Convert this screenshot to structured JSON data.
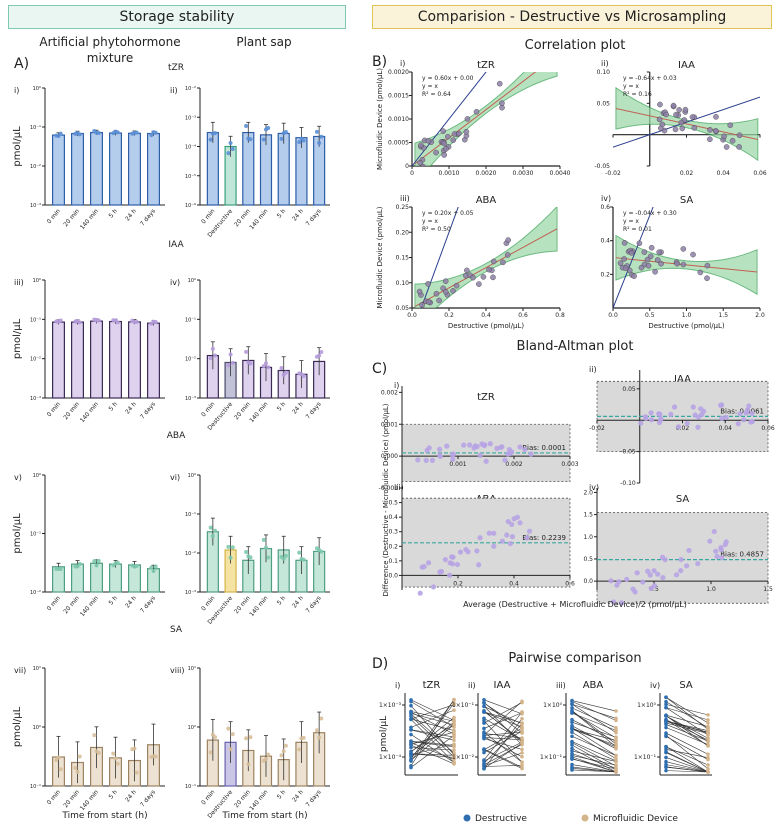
{
  "headers": {
    "left": "Storage stability",
    "right": "Comparision - Destructive vs Microsampling"
  },
  "panel_letters": [
    "A)",
    "B)",
    "C)",
    "D)"
  ],
  "column_titles": {
    "left": "Artificial phytohormone mixture",
    "right": "Plant sap"
  },
  "section_titles": {
    "correlation": "Correlation plot",
    "bland_altman": "Bland-Altman plot",
    "pairwise": "Pairwise comparison"
  },
  "colors": {
    "tZR": "#5b8fd6",
    "IAA": "#b59bdc",
    "ABA": "#7cc9ad",
    "SA": "#d7bf9a",
    "SA_stroke": "#9c8260",
    "destructive": "#2f6fb0",
    "microfluidic": "#d4b48a",
    "reg_line": "#2e9e4b",
    "reg_band": "#9ad6a6",
    "identity_line": "#2b3f8f",
    "ba_band": "#d9d9d9",
    "ba_bias": "#3aa6a0",
    "scatter_point": "#8e7fa8",
    "ba_point": "#b7a3e4",
    "eq_text": "#c94a3d"
  },
  "chart_data": [
    {
      "id": "A",
      "type": "bar",
      "title": "",
      "xlabel": "Time from start (h)",
      "ylabel": "pmol/µL",
      "subpanels": [
        {
          "roman": "i)",
          "hormone": "tZR",
          "column": "left",
          "categories": [
            "0 min",
            "20 min",
            "140 min",
            "5 h",
            "24 h",
            "7 days"
          ],
          "values": [
            0.062,
            0.068,
            0.072,
            0.07,
            0.069,
            0.068
          ],
          "ylim_exp": [
            -3,
            0
          ],
          "yscale": "log",
          "tick_labels": [
            "10⁻³",
            "10⁻²",
            "10⁻¹",
            "10⁰"
          ]
        },
        {
          "roman": "ii)",
          "hormone": "tZR",
          "column": "right",
          "categories": [
            "0 min",
            "Destructive",
            "20 min",
            "140 min",
            "5 h",
            "24 h",
            "7 days"
          ],
          "values": [
            0.0003,
            0.0001,
            0.0003,
            0.00025,
            0.00028,
            0.0002,
            0.00022
          ],
          "ylim_exp": [
            -6,
            -2
          ],
          "yscale": "log",
          "tick_labels": [
            "10⁻⁶",
            "10⁻⁵",
            "10⁻⁴",
            "10⁻³",
            "10⁻²"
          ]
        },
        {
          "roman": "iii)",
          "hormone": "IAA",
          "column": "left",
          "categories": [
            "0 min",
            "20 min",
            "140 min",
            "5 h",
            "24 h",
            "7 days"
          ],
          "values": [
            0.085,
            0.085,
            0.09,
            0.088,
            0.086,
            0.08
          ],
          "ylim_exp": [
            -3,
            0
          ],
          "yscale": "log",
          "tick_labels": [
            "10⁻³",
            "10⁻²",
            "10⁻¹",
            "10⁰"
          ]
        },
        {
          "roman": "iv)",
          "hormone": "IAA",
          "column": "right",
          "categories": [
            "0 min",
            "Destructive",
            "20 min",
            "140 min",
            "5 h",
            "24 h",
            "7 days"
          ],
          "values": [
            0.012,
            0.008,
            0.009,
            0.006,
            0.005,
            0.004,
            0.0085
          ],
          "ylim_exp": [
            -3,
            0
          ],
          "yscale": "log",
          "tick_labels": [
            "10⁻³",
            "10⁻²",
            "10⁻¹",
            "10⁰"
          ]
        },
        {
          "roman": "v)",
          "hormone": "ABA",
          "column": "left",
          "categories": [
            "0 min",
            "20 min",
            "140 min",
            "5 h",
            "24 h",
            "7 days"
          ],
          "values": [
            0.027,
            0.03,
            0.031,
            0.03,
            0.029,
            0.025
          ],
          "ylim_exp": [
            -2,
            0
          ],
          "yscale": "log",
          "tick_labels": [
            "10⁻²",
            "10⁻¹",
            "10⁰"
          ]
        },
        {
          "roman": "vi)",
          "hormone": "ABA",
          "column": "right",
          "categories": [
            "0 min",
            "Destructive",
            "20 min",
            "140 min",
            "5 h",
            "24 h",
            "7 days"
          ],
          "values": [
            0.035,
            0.012,
            0.0065,
            0.013,
            0.012,
            0.0065,
            0.011
          ],
          "ylim_exp": [
            -3,
            0
          ],
          "yscale": "log",
          "tick_labels": [
            "10⁻³",
            "10⁻²",
            "10⁻¹",
            "10⁰"
          ]
        },
        {
          "roman": "vii)",
          "hormone": "SA",
          "column": "left",
          "categories": [
            "0 min",
            "20 min",
            "140 min",
            "5 h",
            "24 h",
            "7 days"
          ],
          "values": [
            0.31,
            0.25,
            0.45,
            0.3,
            0.27,
            0.5
          ],
          "ylim_exp": [
            -1,
            1
          ],
          "yscale": "log",
          "tick_labels": [
            "10⁻¹",
            "10⁰",
            "10¹"
          ]
        },
        {
          "roman": "viii)",
          "hormone": "SA",
          "column": "right",
          "categories": [
            "0 min",
            "Destructive",
            "20 min",
            "140 min",
            "5 h",
            "24 h",
            "7 days"
          ],
          "values": [
            0.6,
            0.55,
            0.4,
            0.32,
            0.28,
            0.55,
            0.8
          ],
          "ylim_exp": [
            -1,
            1
          ],
          "yscale": "log",
          "tick_labels": [
            "10⁻¹",
            "10⁰",
            "10¹"
          ]
        }
      ]
    },
    {
      "id": "B",
      "type": "scatter",
      "title": "Correlation plot",
      "xlabel": "Destructive (pmol/µL)",
      "ylabel": "Microfluidic Device (pmol/µL)",
      "subpanels": [
        {
          "roman": "i)",
          "hormone": "tZR",
          "xlim": [
            0,
            0.004
          ],
          "ylim": [
            0,
            0.002
          ],
          "xticks": [
            "0",
            "0.0010",
            "0.0020",
            "0.0030",
            "0.0040"
          ],
          "yticks": [
            "0",
            "0.0005",
            "0.0010",
            "0.0015",
            "0.0020"
          ],
          "equation": "y = 0.60x + 0.00",
          "identity": "y = x",
          "r2": "R² = 0.64",
          "slope": 0.6,
          "intercept": 0.0
        },
        {
          "roman": "ii)",
          "hormone": "IAA",
          "xlim": [
            -0.02,
            0.06
          ],
          "ylim": [
            -0.05,
            0.1
          ],
          "xticks": [
            "-0.02",
            "0.02",
            "0.04",
            "0.06"
          ],
          "yticks": [
            "-0.05",
            "0.05",
            "0.10"
          ],
          "equation": "y = -0.64x + 0.03",
          "identity": "y = x",
          "r2": "R² = 0.16",
          "slope": -0.64,
          "intercept": 0.03
        },
        {
          "roman": "iii)",
          "hormone": "ABA",
          "xlim": [
            0,
            0.8
          ],
          "ylim": [
            0.05,
            0.25
          ],
          "xticks": [
            "0.0",
            "0.2",
            "0.4",
            "0.6",
            "0.8"
          ],
          "yticks": [
            "0.05",
            "0.10",
            "0.15",
            "0.20",
            "0.25"
          ],
          "equation": "y = 0.20x + 0.05",
          "identity": "y = x",
          "r2": "R² = 0.50",
          "slope": 0.2,
          "intercept": 0.05
        },
        {
          "roman": "iv)",
          "hormone": "SA",
          "xlim": [
            0,
            2.2
          ],
          "ylim": [
            0,
            0.6
          ],
          "xticks": [
            "0.0",
            "0.5",
            "1.0",
            "1.5",
            "2.0"
          ],
          "yticks": [
            "0.2",
            "0.4",
            "0.6"
          ],
          "equation": "y = -0.04x + 0.30",
          "identity": "y = x",
          "r2": "R² = 0.01",
          "slope": -0.04,
          "intercept": 0.3
        }
      ]
    },
    {
      "id": "C",
      "type": "scatter",
      "title": "Bland-Altman plot",
      "xlabel": "Average (Destructive + Microfluidic Device)/2 (pmol/µL)",
      "ylabel": "Difference (Destructive - Microfluidic Device) (pmol/µL)",
      "subpanels": [
        {
          "roman": "i)",
          "hormone": "tZR",
          "xlim": [
            0,
            0.003
          ],
          "ylim": [
            -0.001,
            0.0022
          ],
          "xticks": [
            "0.001",
            "0.002",
            "0.003"
          ],
          "yticks": [
            "-0.001",
            "0.000",
            "0.001",
            "0.002"
          ],
          "bias_label": "Bias: 0.0001",
          "bias": 0.0001,
          "loa": [
            -0.0008,
            0.001
          ]
        },
        {
          "roman": "ii)",
          "hormone": "IAA",
          "xlim": [
            -0.02,
            0.06
          ],
          "ylim": [
            -0.1,
            0.08
          ],
          "xticks": [
            "-0.02",
            "0.02",
            "0.04",
            "0.06"
          ],
          "yticks": [
            "-0.05",
            "0.05",
            "-0.10"
          ],
          "bias_label": "Bias: 0.0061",
          "bias": 0.0061,
          "loa": [
            -0.05,
            0.062
          ]
        },
        {
          "roman": "iii)",
          "hormone": "ABA",
          "xlim": [
            0,
            0.6
          ],
          "ylim": [
            -0.1,
            0.6
          ],
          "xticks": [
            "0.2",
            "0.4",
            "0.6"
          ],
          "yticks": [
            "0.0",
            "0.1",
            "0.2",
            "0.3",
            "0.4",
            "0.5"
          ],
          "bias_label": "Bias: 0.2239",
          "bias": 0.2239,
          "loa": [
            -0.08,
            0.53
          ]
        },
        {
          "roman": "iv)",
          "hormone": "SA",
          "xlim": [
            0,
            1.5
          ],
          "ylim": [
            -0.2,
            2.1
          ],
          "xticks": [
            "0.5",
            "1.0",
            "1.5"
          ],
          "yticks": [
            "0.0",
            "0.5",
            "1.0",
            "1.5",
            "2.0"
          ],
          "bias_label": "Bias: 0.4857",
          "bias": 0.4857,
          "loa": [
            -0.5,
            1.55
          ]
        }
      ]
    },
    {
      "id": "D",
      "type": "line",
      "title": "Pairwise comparison",
      "ylabel": "pmol/µL",
      "legend": [
        "Destructive",
        "Microfluidic Device"
      ],
      "legend_position": "bottom",
      "subpanels": [
        {
          "roman": "i)",
          "hormone": "tZR",
          "ytick_labels": [
            "1×10⁻³",
            "1×10⁻⁴"
          ],
          "ylim_exp": [
            -4.6,
            -2.6
          ]
        },
        {
          "roman": "ii)",
          "hormone": "IAA",
          "ytick_labels": [
            "1×10⁻¹",
            "1×10⁻²"
          ],
          "ylim_exp": [
            -2.6,
            -1
          ]
        },
        {
          "roman": "iii)",
          "hormone": "ABA",
          "ytick_labels": [
            "1×10⁰",
            "1×10⁻¹"
          ],
          "ylim_exp": [
            -1.7,
            0
          ]
        },
        {
          "roman": "iv)",
          "hormone": "SA",
          "ytick_labels": [
            "1×10⁰",
            "1×10⁻¹"
          ],
          "ylim_exp": [
            -1.3,
            0.4
          ]
        }
      ]
    }
  ]
}
